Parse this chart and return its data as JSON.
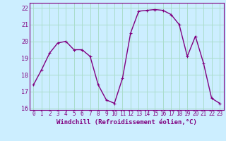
{
  "x": [
    0,
    1,
    2,
    3,
    4,
    5,
    6,
    7,
    8,
    9,
    10,
    11,
    12,
    13,
    14,
    15,
    16,
    17,
    18,
    19,
    20,
    21,
    22,
    23
  ],
  "y": [
    17.4,
    18.3,
    19.3,
    19.9,
    20.0,
    19.5,
    19.5,
    19.1,
    17.4,
    16.5,
    16.3,
    17.8,
    20.5,
    21.8,
    21.85,
    21.9,
    21.85,
    21.6,
    21.0,
    19.1,
    20.3,
    18.7,
    16.6,
    16.3
  ],
  "line_color": "#800080",
  "marker": "+",
  "marker_size": 3,
  "background_color": "#cceeff",
  "grid_color": "#aaddcc",
  "xlabel": "Windchill (Refroidissement éolien,°C)",
  "ylim": [
    15.9,
    22.3
  ],
  "xlim": [
    -0.5,
    23.5
  ],
  "yticks": [
    16,
    17,
    18,
    19,
    20,
    21,
    22
  ],
  "xticks": [
    0,
    1,
    2,
    3,
    4,
    5,
    6,
    7,
    8,
    9,
    10,
    11,
    12,
    13,
    14,
    15,
    16,
    17,
    18,
    19,
    20,
    21,
    22,
    23
  ],
  "xlabel_fontsize": 6.5,
  "tick_fontsize": 6,
  "line_width": 1.0
}
